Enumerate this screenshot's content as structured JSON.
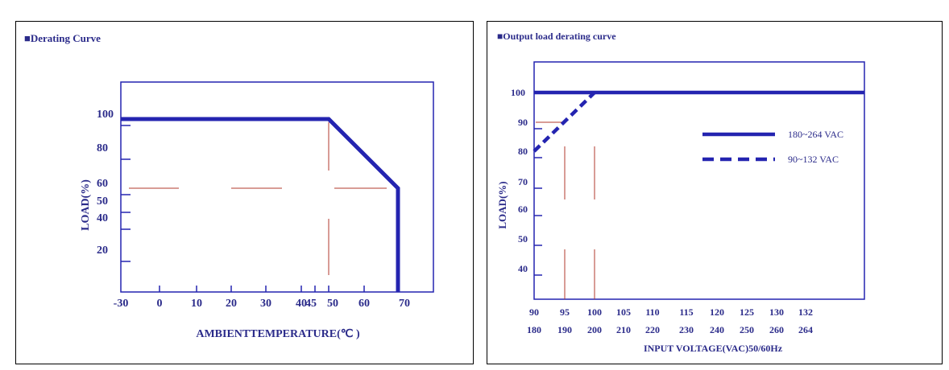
{
  "charts": [
    {
      "type": "line",
      "title": "■Derating Curve",
      "xlabel": "AMBIENTTEMPERATURE(℃ )",
      "ylabel": "LOAD(%)",
      "x_ticks": [
        {
          "value": -30,
          "label": "-30"
        },
        {
          "value": 0,
          "label": "0"
        },
        {
          "value": 10,
          "label": "10"
        },
        {
          "value": 20,
          "label": "20"
        },
        {
          "value": 30,
          "label": "30"
        },
        {
          "value": 40,
          "label": "40"
        },
        {
          "value": 45,
          "label": "45"
        },
        {
          "value": 50,
          "label": "50"
        },
        {
          "value": 60,
          "label": "60"
        },
        {
          "value": 70,
          "label": "70"
        }
      ],
      "y_ticks": [
        {
          "value": 100,
          "label": "100"
        },
        {
          "value": 80,
          "label": "80"
        },
        {
          "value": 60,
          "label": "60"
        },
        {
          "value": 50,
          "label": "50"
        },
        {
          "value": 40,
          "label": "40"
        },
        {
          "value": 20,
          "label": "20"
        }
      ],
      "series": [
        {
          "style": "solid",
          "points": [
            [
              -30,
              100
            ],
            [
              50,
              100
            ],
            [
              70,
              60
            ],
            [
              70,
              0
            ]
          ]
        }
      ],
      "guides": {
        "v": [
          50
        ],
        "h": [
          60
        ]
      },
      "colors": {
        "line": "#2424b0",
        "guide": "#b03a2e",
        "text": "#2b2b8a"
      }
    },
    {
      "type": "line",
      "title": "■Output load derating curve",
      "xlabel": "INPUT VOLTAGE(VAC)50/60Hz",
      "ylabel": "LOAD(%)",
      "x_ticks": [
        {
          "label": "90",
          "label2": "180"
        },
        {
          "label": "95",
          "label2": "190"
        },
        {
          "label": "100",
          "label2": "200"
        },
        {
          "label": "105",
          "label2": "210"
        },
        {
          "label": "110",
          "label2": "220"
        },
        {
          "label": "115",
          "label2": "230"
        },
        {
          "label": "120",
          "label2": "240"
        },
        {
          "label": "125",
          "label2": "250"
        },
        {
          "label": "130",
          "label2": "260"
        },
        {
          "label": "132",
          "label2": "264"
        }
      ],
      "y_ticks": [
        {
          "value": 100,
          "label": "100"
        },
        {
          "value": 90,
          "label": "90"
        },
        {
          "value": 80,
          "label": "80"
        },
        {
          "value": 70,
          "label": "70"
        },
        {
          "value": 60,
          "label": "60"
        },
        {
          "value": 50,
          "label": "50"
        },
        {
          "value": 40,
          "label": "40"
        }
      ],
      "series": [
        {
          "name": "180~264 VAC",
          "style": "solid",
          "points": [
            [
              90,
              100
            ],
            [
              132,
              100
            ]
          ]
        },
        {
          "name": "90~132 VAC",
          "style": "dashed",
          "points": [
            [
              90,
              80
            ],
            [
              100,
              100
            ]
          ]
        }
      ],
      "guides": {
        "v": [
          95,
          100
        ],
        "h": [
          90,
          100
        ]
      },
      "colors": {
        "line": "#2424b0",
        "guide": "#b03a2e",
        "text": "#2b2b8a"
      }
    }
  ]
}
